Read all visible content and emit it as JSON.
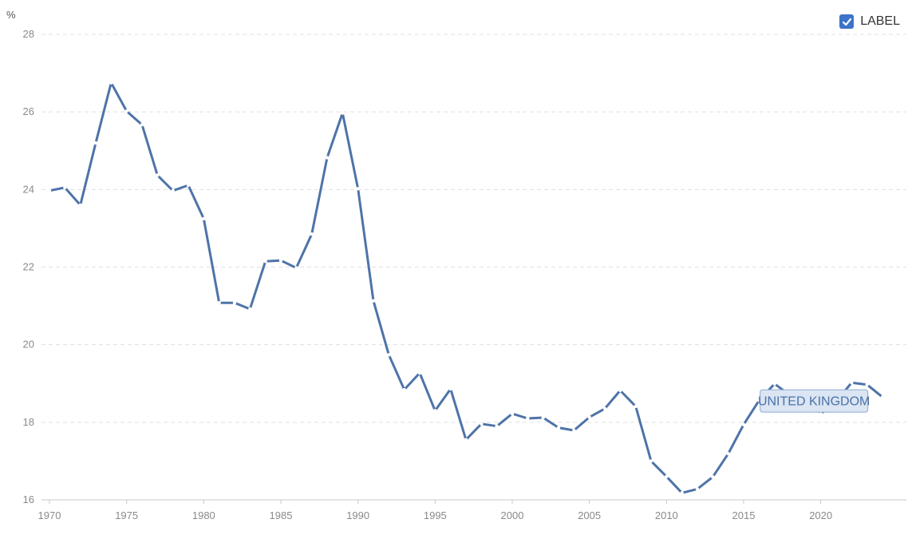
{
  "legend": {
    "label": "LABEL",
    "checked": true
  },
  "chart_data": {
    "type": "line",
    "ylabel": "%",
    "ylim": [
      16,
      28
    ],
    "yticks": [
      16,
      18,
      20,
      22,
      24,
      26,
      28
    ],
    "xlim": [
      1970,
      2024
    ],
    "xticks": [
      1970,
      1975,
      1980,
      1985,
      1990,
      1995,
      2000,
      2005,
      2010,
      2015,
      2020
    ],
    "grid": true,
    "series": [
      {
        "name": "UNITED KINGDOM",
        "color": "#4e73a8",
        "x": [
          1970,
          1971,
          1972,
          1973,
          1974,
          1975,
          1976,
          1977,
          1978,
          1979,
          1980,
          1981,
          1982,
          1983,
          1984,
          1985,
          1986,
          1987,
          1988,
          1989,
          1990,
          1991,
          1992,
          1993,
          1994,
          1995,
          1996,
          1997,
          1998,
          1999,
          2000,
          2001,
          2002,
          2003,
          2004,
          2005,
          2006,
          2007,
          2008,
          2009,
          2010,
          2011,
          2012,
          2013,
          2014,
          2015,
          2016,
          2017,
          2018,
          2019,
          2020,
          2021,
          2022,
          2023,
          2024
        ],
        "values": [
          23.97,
          24.05,
          23.6,
          25.2,
          26.75,
          26.02,
          25.67,
          24.37,
          23.97,
          24.11,
          23.25,
          21.08,
          21.08,
          20.92,
          22.15,
          22.17,
          21.98,
          22.85,
          24.82,
          25.97,
          24.02,
          21.13,
          19.74,
          18.84,
          19.27,
          18.3,
          18.86,
          17.55,
          17.96,
          17.9,
          18.22,
          18.1,
          18.12,
          17.86,
          17.79,
          18.13,
          18.35,
          18.82,
          18.41,
          17.0,
          16.6,
          16.18,
          16.28,
          16.59,
          17.19,
          17.94,
          18.56,
          18.99,
          18.7,
          18.82,
          18.22,
          18.54,
          19.02,
          18.97,
          18.65
        ]
      }
    ]
  }
}
